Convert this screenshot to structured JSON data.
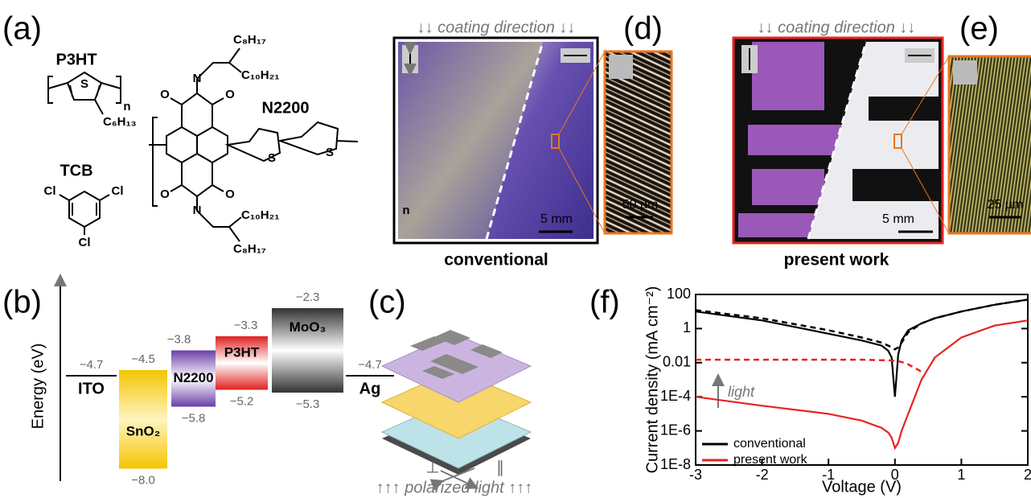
{
  "panel_labels": {
    "a": "(a)",
    "b": "(b)",
    "c": "(c)",
    "d": "(d)",
    "e": "(e)",
    "f": "(f)"
  },
  "molecules": {
    "p3ht": {
      "name": "P3HT",
      "atoms": [
        "S"
      ],
      "n": "n",
      "chains": [
        "C₆H₁₃"
      ]
    },
    "n2200": {
      "name": "N2200",
      "atoms": [
        "O",
        "N",
        "O",
        "O",
        "N",
        "O",
        "S",
        "S"
      ],
      "n": "n",
      "chains": [
        "C₈H₁₇",
        "C₁₀H₂₁",
        "C₁₀H₂₁",
        "C₈H₁₇"
      ]
    },
    "tcb": {
      "name": "TCB",
      "atoms": [
        "Cl",
        "Cl",
        "Cl"
      ]
    }
  },
  "images": {
    "conventional": {
      "direction": "↓↓ coating direction ↓↓",
      "scale": "5 mm",
      "zoom_scale": "50 µm",
      "caption": "conventional"
    },
    "present": {
      "direction": "↓↓ coating direction ↓↓",
      "scale": "5 mm",
      "zoom_scale": "25 µm",
      "caption": "present work"
    }
  },
  "energy_diagram": {
    "axis_label": "Energy (eV)",
    "levels": [
      {
        "name": "ITO",
        "top": -4.7,
        "labels": [
          "−4.7"
        ]
      },
      {
        "name": "SnO₂",
        "top": -4.5,
        "bottom": -8.0,
        "labels": [
          "−4.5",
          "−8.0"
        ],
        "color": "#f5d33a"
      },
      {
        "name": "N2200",
        "top": -3.8,
        "bottom": -5.8,
        "labels": [
          "−3.8",
          "−5.8"
        ],
        "color": "#7a4fb0"
      },
      {
        "name": "P3HT",
        "top": -3.3,
        "bottom": -5.2,
        "labels": [
          "−3.3",
          "−5.2"
        ],
        "color": "#e02a2a"
      },
      {
        "name": "MoO₃",
        "top": -2.3,
        "bottom": -5.3,
        "labels": [
          "−2.3",
          "−5.3"
        ],
        "color": "#555555"
      },
      {
        "name": "Ag",
        "top": -4.7,
        "labels": [
          "−4.7"
        ]
      }
    ]
  },
  "device": {
    "perp": "⊥",
    "par": "∥",
    "light": "↑↑↑ polarized light ↑↑↑"
  },
  "chart_data": {
    "type": "line",
    "xlabel": "Voltage (V)",
    "ylabel": "Current density (mA cm⁻²)",
    "yscale": "log",
    "legend": "lower left",
    "grid": false,
    "annotation": "light",
    "x": [
      -3,
      -2,
      -1,
      -0.5,
      -0.2,
      -0.1,
      -0.05,
      0,
      0.05,
      0.1,
      0.2,
      0.4,
      0.6,
      1,
      1.5,
      2
    ],
    "series": [
      {
        "name": "conventional",
        "color": "#000000",
        "values": [
          10,
          3,
          0.5,
          0.2,
          0.1,
          0.05,
          0.02,
          0.0001,
          0.03,
          0.2,
          0.8,
          2,
          4,
          10,
          25,
          50
        ]
      },
      {
        "color": "#000000",
        "dashed": true,
        "values": [
          12,
          4,
          0.8,
          0.3,
          0.15,
          0.1,
          0.08,
          0.06,
          0.08,
          0.15,
          0.6,
          2,
          4,
          10,
          25,
          50
        ]
      },
      {
        "name": "present work",
        "color": "#e8231f",
        "values": [
          0.0001,
          3e-05,
          1e-05,
          4e-06,
          1.5e-06,
          8e-07,
          4e-07,
          1e-07,
          2e-07,
          1e-06,
          1e-05,
          0.001,
          0.02,
          0.3,
          1.5,
          3
        ]
      },
      {
        "color": "#e8231f",
        "dashed": true,
        "values": [
          0.015,
          0.015,
          0.015,
          0.015,
          0.014,
          0.014,
          0.013,
          0.013,
          0.012,
          0.011,
          0.008,
          0.003,
          null,
          null,
          null,
          null
        ]
      }
    ],
    "xlim": [
      -3,
      2
    ],
    "ylim": [
      1e-08,
      100
    ],
    "xticks": [
      -3,
      -2,
      -1,
      0,
      1,
      2
    ],
    "yticks": [
      {
        "value": 1e-08,
        "label": "1E-8"
      },
      {
        "value": 1e-06,
        "label": "1E-6"
      },
      {
        "value": 0.0001,
        "label": "1E-4"
      },
      0.01,
      1,
      100
    ]
  }
}
